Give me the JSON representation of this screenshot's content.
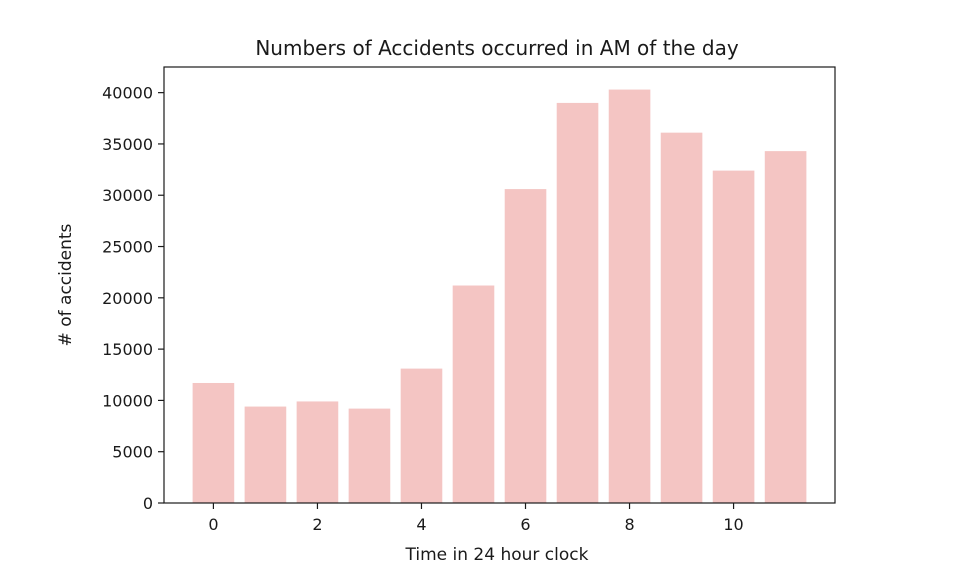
{
  "chart_data": {
    "type": "bar",
    "title": "Numbers of Accidents occurred in AM of the day",
    "xlabel": "Time in 24 hour clock",
    "ylabel": "# of accidents",
    "categories": [
      0,
      1,
      2,
      3,
      4,
      5,
      6,
      7,
      8,
      9,
      10,
      11
    ],
    "values": [
      11700,
      9400,
      9900,
      9200,
      13100,
      21200,
      30600,
      39000,
      40300,
      36100,
      32400,
      34300
    ],
    "xlim": [
      -0.95,
      11.95
    ],
    "ylim": [
      0,
      42500
    ],
    "xticks": [
      0,
      2,
      4,
      6,
      8,
      10
    ],
    "yticks": [
      0,
      5000,
      10000,
      15000,
      20000,
      25000,
      30000,
      35000,
      40000
    ],
    "bar_color": "#f4c5c3",
    "grid": false,
    "legend": "none"
  }
}
